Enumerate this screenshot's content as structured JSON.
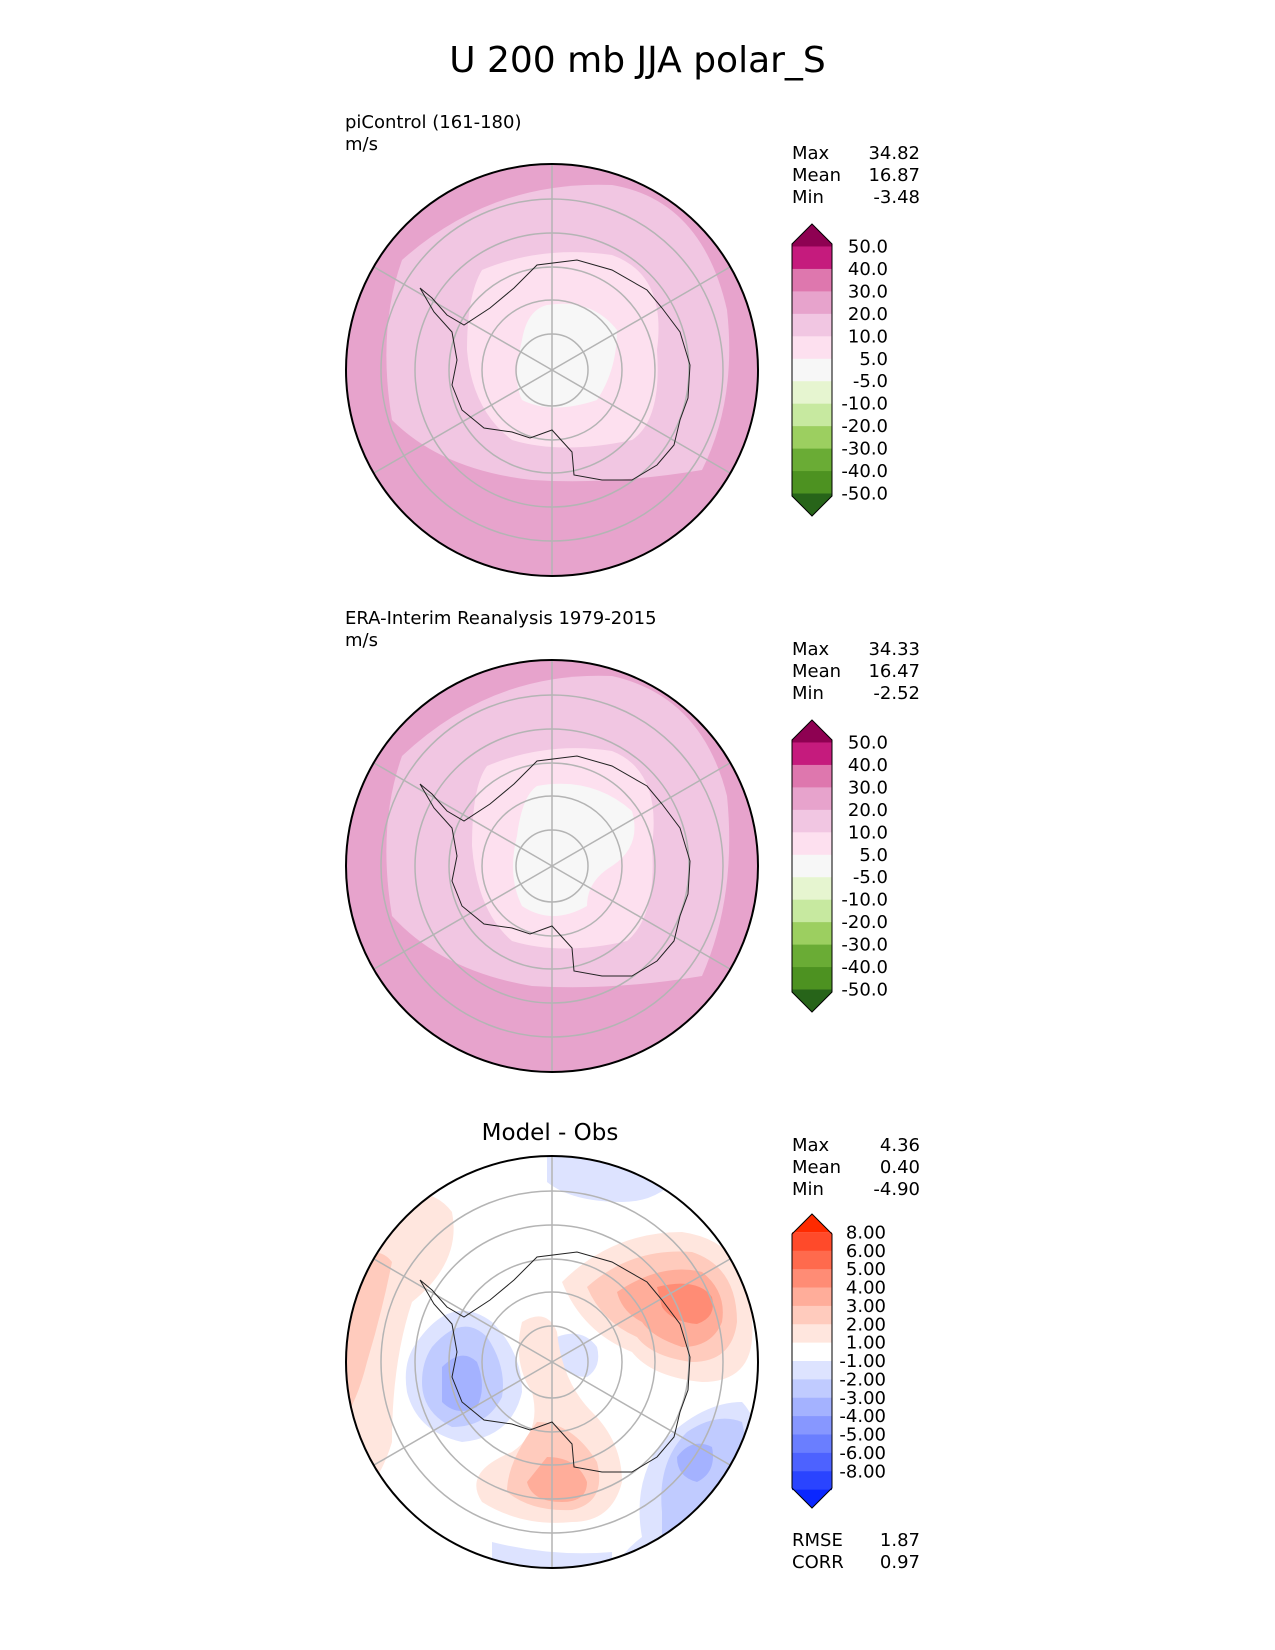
{
  "figure_title": "U 200 mb JJA polar_S",
  "panels": [
    {
      "id": "model",
      "title_line1": "piControl (161-180)",
      "units": "m/s",
      "stats": [
        {
          "label": "Max",
          "value": "34.82"
        },
        {
          "label": "Mean",
          "value": "16.87"
        },
        {
          "label": "Min",
          "value": "-3.48"
        }
      ],
      "colorbar": {
        "colors": [
          "#8e0152",
          "#c51b7d",
          "#de77ae",
          "#e7a3cc",
          "#f1c6e2",
          "#fde0ef",
          "#f7f7f7",
          "#e6f5d0",
          "#c7e9a0",
          "#9ccf60",
          "#6aac35",
          "#4d9221",
          "#276419"
        ],
        "ticks": [
          "50.0",
          "40.0",
          "30.0",
          "20.0",
          "10.0",
          "5.0",
          "-5.0",
          "-10.0",
          "-20.0",
          "-30.0",
          "-40.0",
          "-50.0"
        ]
      }
    },
    {
      "id": "obs",
      "title_line1": "ERA-Interim Reanalysis 1979-2015",
      "units": "m/s",
      "stats": [
        {
          "label": "Max",
          "value": "34.33"
        },
        {
          "label": "Mean",
          "value": "16.47"
        },
        {
          "label": "Min",
          "value": "-2.52"
        }
      ],
      "colorbar": {
        "colors": [
          "#8e0152",
          "#c51b7d",
          "#de77ae",
          "#e7a3cc",
          "#f1c6e2",
          "#fde0ef",
          "#f7f7f7",
          "#e6f5d0",
          "#c7e9a0",
          "#9ccf60",
          "#6aac35",
          "#4d9221",
          "#276419"
        ],
        "ticks": [
          "50.0",
          "40.0",
          "30.0",
          "20.0",
          "10.0",
          "5.0",
          "-5.0",
          "-10.0",
          "-20.0",
          "-30.0",
          "-40.0",
          "-50.0"
        ]
      }
    },
    {
      "id": "diff",
      "title": "Model - Obs",
      "stats": [
        {
          "label": "Max",
          "value": "4.36"
        },
        {
          "label": "Mean",
          "value": "0.40"
        },
        {
          "label": "Min",
          "value": "-4.90"
        }
      ],
      "metrics": [
        {
          "label": "RMSE",
          "value": "1.87"
        },
        {
          "label": "CORR",
          "value": "0.97"
        }
      ],
      "colorbar": {
        "colors": [
          "#ff2a00",
          "#ff4a2a",
          "#ff6a4d",
          "#ff8c75",
          "#ffad9a",
          "#ffcbbd",
          "#ffe6de",
          "#ffffff",
          "#dde3ff",
          "#c0cbff",
          "#a4b2ff",
          "#8797ff",
          "#6a7eff",
          "#4d62ff",
          "#2a44ff",
          "#0a27ff"
        ],
        "ticks": [
          "8.00",
          "6.00",
          "5.00",
          "4.00",
          "3.00",
          "2.00",
          "1.00",
          "-1.00",
          "-2.00",
          "-3.00",
          "-4.00",
          "-5.00",
          "-6.00",
          "-8.00"
        ]
      }
    }
  ]
}
